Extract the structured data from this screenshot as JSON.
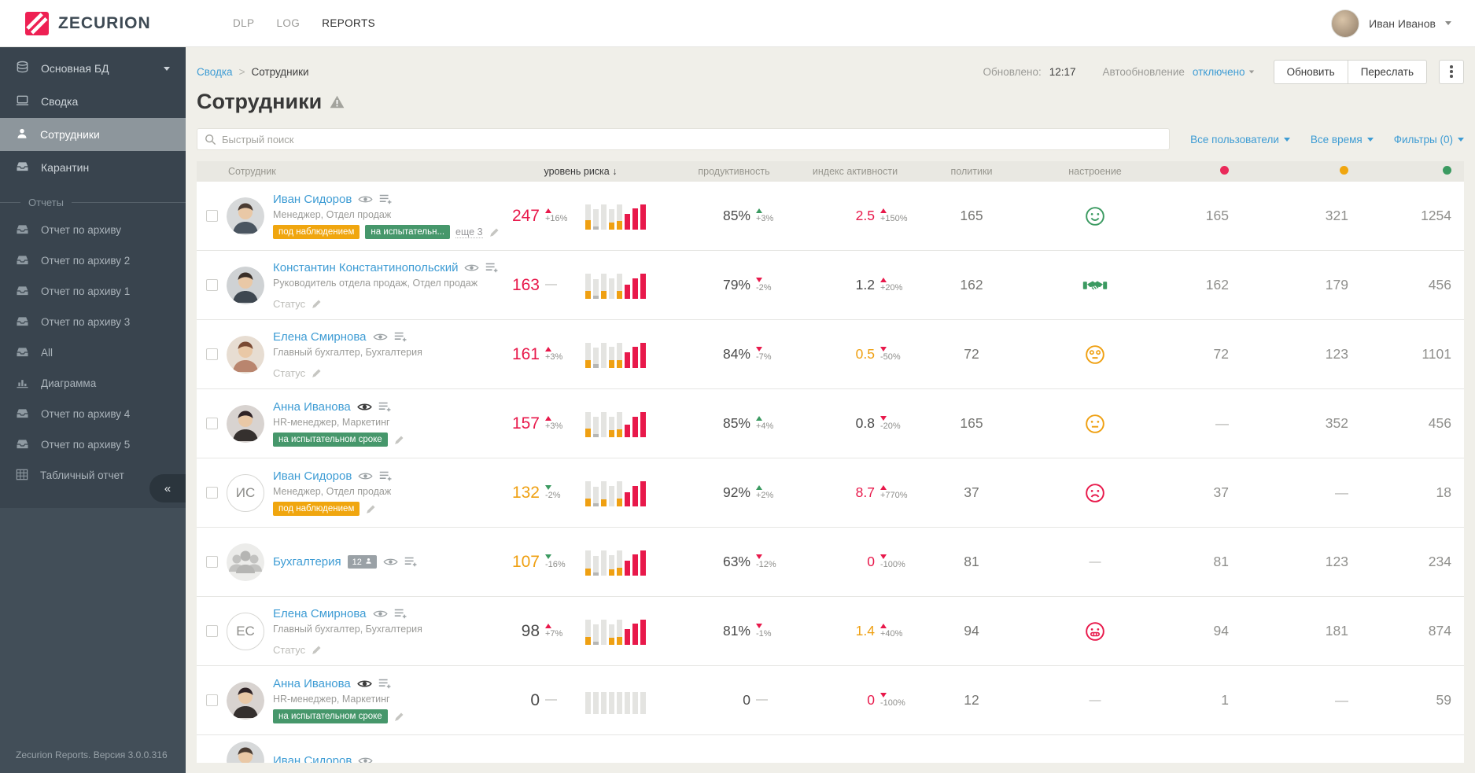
{
  "topbar": {
    "brand": "ZECURION",
    "nav": [
      {
        "label": "DLP",
        "active": false
      },
      {
        "label": "LOG",
        "active": false
      },
      {
        "label": "REPORTS",
        "active": true
      }
    ],
    "user": {
      "name": "Иван Иванов"
    }
  },
  "sidebar": {
    "database": {
      "label": "Основная БД",
      "icon": "database"
    },
    "items": [
      {
        "label": "Сводка",
        "icon": "monitor",
        "active": false
      },
      {
        "label": "Сотрудники",
        "icon": "person",
        "active": true
      },
      {
        "label": "Карантин",
        "icon": "inbox",
        "active": false
      }
    ],
    "section_label": "Отчеты",
    "reports": [
      {
        "label": "Отчет по архиву",
        "icon": "inbox"
      },
      {
        "label": "Отчет по архиву 2",
        "icon": "inbox"
      },
      {
        "label": "Отчет по архиву 1",
        "icon": "inbox"
      },
      {
        "label": "Отчет по архиву 3",
        "icon": "inbox"
      },
      {
        "label": "All",
        "icon": "inbox"
      },
      {
        "label": "Диаграмма",
        "icon": "chart"
      },
      {
        "label": "Отчет по архиву 4",
        "icon": "inbox"
      },
      {
        "label": "Отчет по архиву 5",
        "icon": "inbox"
      },
      {
        "label": "Табличный отчет",
        "icon": "grid"
      }
    ],
    "collapse_glyph": "«",
    "footer": "Zecurion Reports. Версия 3.0.0.316"
  },
  "page": {
    "breadcrumb_parent": "Сводка",
    "breadcrumb_sep": ">",
    "breadcrumb_current": "Сотрудники",
    "title": "Сотрудники",
    "updated_label": "Обновлено:",
    "updated_time": "12:17",
    "autorefresh_label": "Автообновление",
    "autorefresh_state": "отключено",
    "refresh_button": "Обновить",
    "forward_button": "Переслать"
  },
  "filters": {
    "search_placeholder": "Быстрый поиск",
    "users_link": "Все пользователи",
    "time_link": "Все время",
    "filters_link": "Фильтры (0)"
  },
  "colors": {
    "red": "#e8194b",
    "orange": "#efa012",
    "green": "#3b9a61",
    "gray_bar": "#b7b7b5",
    "track": "#e4e4e1"
  },
  "table": {
    "headers": {
      "employee": "Сотрудник",
      "risk": "уровень риска",
      "risk_sort": "↓",
      "productivity": "продуктивность",
      "activity": "индекс активности",
      "policies": "политики",
      "mood": "настроение"
    },
    "header_dots": [
      "red",
      "orange",
      "green"
    ],
    "rows": [
      {
        "name": "Иван Сидоров",
        "eye": "outline",
        "subtitle": "Менеджер, Отдел продаж",
        "avatar": {
          "type": "photo",
          "tone": "m1"
        },
        "badges": [
          {
            "text": "под наблюдением",
            "color": "orange"
          },
          {
            "text": "на испытательн...",
            "color": "green"
          }
        ],
        "more": "еще 3",
        "pencil": true,
        "risk": {
          "value": "247",
          "color": "red",
          "dir": "up",
          "dir_color": "red",
          "delta": "+16%"
        },
        "bars": [
          [
            1,
            0.36,
            "o"
          ],
          [
            0.8,
            0.12,
            "g"
          ],
          [
            1,
            0,
            ""
          ],
          [
            0.8,
            0.26,
            "o"
          ],
          [
            1,
            0.32,
            "o"
          ],
          [
            0.6,
            0.6,
            "r"
          ],
          [
            0.84,
            0.84,
            "r"
          ],
          [
            1,
            1,
            "r"
          ]
        ],
        "productivity": {
          "value": "85%",
          "color": "gray",
          "dir": "up",
          "dir_color": "green",
          "delta": "+3%"
        },
        "activity": {
          "value": "2.5",
          "color": "red",
          "dir": "up",
          "dir_color": "red",
          "delta": "+150%"
        },
        "policies": "165",
        "mood": "smile-green",
        "stats": [
          "165",
          "321",
          "1254"
        ]
      },
      {
        "name": "Константин Константинопольский",
        "eye": "outline",
        "subtitle": "Руководитель отдела продаж, Отдел продаж",
        "avatar": {
          "type": "photo",
          "tone": "m2"
        },
        "status": "Статус",
        "risk": {
          "value": "163",
          "color": "red",
          "dir": "none",
          "delta": "—"
        },
        "bars": [
          [
            1,
            0.3,
            "o"
          ],
          [
            0.78,
            0.12,
            "g"
          ],
          [
            1,
            0.3,
            "o"
          ],
          [
            0.8,
            0,
            ""
          ],
          [
            1,
            0.3,
            "o"
          ],
          [
            0.55,
            0.55,
            "r"
          ],
          [
            0.8,
            0.8,
            "r"
          ],
          [
            1,
            1,
            "r"
          ]
        ],
        "productivity": {
          "value": "79%",
          "color": "gray",
          "dir": "down",
          "dir_color": "red",
          "delta": "-2%"
        },
        "activity": {
          "value": "1.2",
          "color": "gray",
          "dir": "up",
          "dir_color": "red",
          "delta": "+20%"
        },
        "policies": "162",
        "mood": "handshake-green",
        "stats": [
          "162",
          "179",
          "456"
        ]
      },
      {
        "name": "Елена Смирнова",
        "eye": "outline",
        "subtitle": "Главный бухгалтер, Бухгалтерия",
        "avatar": {
          "type": "photo",
          "tone": "f1"
        },
        "status": "Статус",
        "risk": {
          "value": "161",
          "color": "red",
          "dir": "up",
          "dir_color": "red",
          "delta": "+3%"
        },
        "bars": [
          [
            1,
            0.3,
            "o"
          ],
          [
            0.8,
            0.14,
            "g"
          ],
          [
            1,
            0,
            ""
          ],
          [
            0.82,
            0.3,
            "o"
          ],
          [
            1,
            0.3,
            "o"
          ],
          [
            0.62,
            0.62,
            "r"
          ],
          [
            0.84,
            0.84,
            "r"
          ],
          [
            1,
            1,
            "r"
          ]
        ],
        "productivity": {
          "value": "84%",
          "color": "gray",
          "dir": "down",
          "dir_color": "red",
          "delta": "-7%"
        },
        "activity": {
          "value": "0.5",
          "color": "orange",
          "dir": "down",
          "dir_color": "red",
          "delta": "-50%"
        },
        "policies": "72",
        "mood": "dizzy-orange",
        "stats": [
          "72",
          "123",
          "1101"
        ]
      },
      {
        "name": "Анна Иванова",
        "eye": "filled",
        "subtitle": "HR-менеджер, Маркетинг",
        "avatar": {
          "type": "photo",
          "tone": "f2"
        },
        "badges": [
          {
            "text": "на испытательном сроке",
            "color": "green"
          }
        ],
        "pencil": true,
        "risk": {
          "value": "157",
          "color": "red",
          "dir": "up",
          "dir_color": "red",
          "delta": "+3%"
        },
        "bars": [
          [
            1,
            0.34,
            "o"
          ],
          [
            0.8,
            0.1,
            "g"
          ],
          [
            1,
            0,
            ""
          ],
          [
            0.8,
            0.26,
            "o"
          ],
          [
            1,
            0.3,
            "o"
          ],
          [
            0.5,
            0.5,
            "r"
          ],
          [
            0.8,
            0.8,
            "r"
          ],
          [
            1,
            1,
            "r"
          ]
        ],
        "productivity": {
          "value": "85%",
          "color": "gray",
          "dir": "up",
          "dir_color": "green",
          "delta": "+4%"
        },
        "activity": {
          "value": "0.8",
          "color": "gray",
          "dir": "down",
          "dir_color": "red",
          "delta": "-20%"
        },
        "policies": "165",
        "mood": "neutral-orange",
        "stats": [
          "—",
          "352",
          "456"
        ]
      },
      {
        "name": "Иван Сидоров",
        "eye": "outline",
        "subtitle": "Менеджер, Отдел продаж",
        "avatar": {
          "type": "initials",
          "initials": "ИС"
        },
        "badges": [
          {
            "text": "под наблюдением",
            "color": "orange"
          }
        ],
        "pencil": true,
        "risk": {
          "value": "132",
          "color": "orange",
          "dir": "down",
          "dir_color": "green",
          "delta": "-2%"
        },
        "bars": [
          [
            1,
            0.3,
            "o"
          ],
          [
            0.78,
            0.12,
            "g"
          ],
          [
            1,
            0.26,
            "o"
          ],
          [
            0.8,
            0,
            ""
          ],
          [
            1,
            0.3,
            "o"
          ],
          [
            0.55,
            0.55,
            "r"
          ],
          [
            0.8,
            0.8,
            "r"
          ],
          [
            1,
            1,
            "r"
          ]
        ],
        "productivity": {
          "value": "92%",
          "color": "gray",
          "dir": "up",
          "dir_color": "green",
          "delta": "+2%"
        },
        "activity": {
          "value": "8.7",
          "color": "red",
          "dir": "up",
          "dir_color": "red",
          "delta": "+770%"
        },
        "policies": "37",
        "mood": "sad-red",
        "stats": [
          "37",
          "—",
          "18"
        ]
      },
      {
        "name": "Бухгалтерия",
        "eye": "outline",
        "group_count": "12",
        "avatar": {
          "type": "group"
        },
        "risk": {
          "value": "107",
          "color": "orange",
          "dir": "down",
          "dir_color": "green",
          "delta": "-16%"
        },
        "bars": [
          [
            1,
            0.28,
            "o"
          ],
          [
            0.78,
            0.1,
            "g"
          ],
          [
            1,
            0,
            ""
          ],
          [
            0.8,
            0.24,
            "o"
          ],
          [
            1,
            0.3,
            "o"
          ],
          [
            0.58,
            0.58,
            "r"
          ],
          [
            0.82,
            0.82,
            "r"
          ],
          [
            1,
            1,
            "r"
          ]
        ],
        "productivity": {
          "value": "63%",
          "color": "gray",
          "dir": "down",
          "dir_color": "red",
          "delta": "-12%"
        },
        "activity": {
          "value": "0",
          "color": "red",
          "dir": "down",
          "dir_color": "red",
          "delta": "-100%"
        },
        "policies": "81",
        "mood": "dash",
        "stats": [
          "81",
          "123",
          "234"
        ]
      },
      {
        "name": "Елена Смирнова",
        "eye": "outline",
        "subtitle": "Главный бухгалтер, Бухгалтерия",
        "avatar": {
          "type": "initials",
          "initials": "ЕС"
        },
        "status": "Статус",
        "risk": {
          "value": "98",
          "color": "gray",
          "dir": "up",
          "dir_color": "red",
          "delta": "+7%"
        },
        "bars": [
          [
            1,
            0.3,
            "o"
          ],
          [
            0.8,
            0.12,
            "g"
          ],
          [
            1,
            0,
            ""
          ],
          [
            0.8,
            0.26,
            "o"
          ],
          [
            1,
            0.3,
            "o"
          ],
          [
            0.6,
            0.6,
            "r"
          ],
          [
            0.82,
            0.82,
            "r"
          ],
          [
            1,
            1,
            "r"
          ]
        ],
        "productivity": {
          "value": "81%",
          "color": "gray",
          "dir": "down",
          "dir_color": "red",
          "delta": "-1%"
        },
        "activity": {
          "value": "1.4",
          "color": "orange",
          "dir": "up",
          "dir_color": "red",
          "delta": "+40%"
        },
        "policies": "94",
        "mood": "grimace-red",
        "stats": [
          "94",
          "181",
          "874"
        ]
      },
      {
        "name": "Анна Иванова",
        "eye": "filled",
        "subtitle": "HR-менеджер, Маркетинг",
        "avatar": {
          "type": "photo",
          "tone": "f2"
        },
        "badges": [
          {
            "text": "на испытательном сроке",
            "color": "green"
          }
        ],
        "pencil": true,
        "risk": {
          "value": "0",
          "color": "gray",
          "dir": "none",
          "delta": "—"
        },
        "bars": [
          [
            0.85,
            0,
            ""
          ],
          [
            0.85,
            0,
            ""
          ],
          [
            0.85,
            0,
            ""
          ],
          [
            0.85,
            0,
            ""
          ],
          [
            0.85,
            0,
            ""
          ],
          [
            0.85,
            0,
            ""
          ],
          [
            0.85,
            0,
            ""
          ],
          [
            0.85,
            0,
            ""
          ]
        ],
        "productivity": {
          "value": "0",
          "color": "gray",
          "dir": "none",
          "delta": "—"
        },
        "activity": {
          "value": "0",
          "color": "red",
          "dir": "down",
          "dir_color": "red",
          "delta": "-100%"
        },
        "policies": "12",
        "mood": "dash",
        "stats": [
          "1",
          "—",
          "59"
        ]
      },
      {
        "name": "Иван Сидоров",
        "eye": "outline",
        "avatar": {
          "type": "photo",
          "tone": "m1"
        },
        "partial": true
      }
    ]
  }
}
